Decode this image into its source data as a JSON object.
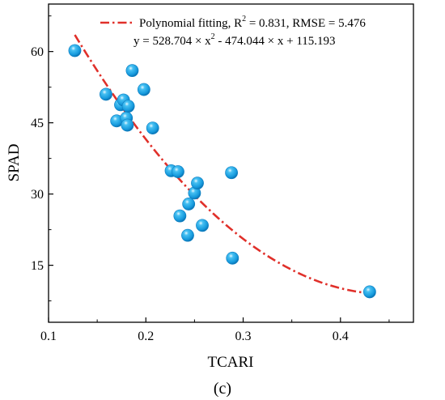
{
  "chart_data": {
    "type": "scatter",
    "xlabel": "TCARI",
    "ylabel": "SPAD",
    "panel_label": "(c)",
    "xlim": [
      0.1,
      0.475
    ],
    "ylim": [
      3,
      70
    ],
    "x_ticks": [
      0.1,
      0.2,
      0.3,
      0.4
    ],
    "x_tick_labels": [
      "0.1",
      "0.2",
      "0.3",
      "0.4"
    ],
    "y_ticks": [
      15,
      30,
      45,
      60
    ],
    "y_tick_labels": [
      "15",
      "30",
      "45",
      "60"
    ],
    "grid": false,
    "legend_position": "top",
    "legend": {
      "fit_label": "Polynomial fitting, R",
      "r2_exponent": "2",
      "fit_stats": " = 0.831, RMSE = 5.476",
      "equation_start": "y = 528.704 × x",
      "equation_exponent": "2",
      "equation_end": " - 474.044 × x + 115.193"
    },
    "fit": {
      "a": 528.704,
      "b": -474.044,
      "c": 115.193,
      "x_range": [
        0.127,
        0.43
      ]
    },
    "colors": {
      "points": "#1ba3e8",
      "fit_line": "#e0302a"
    },
    "points": [
      {
        "x": 0.127,
        "y": 60.2
      },
      {
        "x": 0.159,
        "y": 51.0
      },
      {
        "x": 0.17,
        "y": 45.4
      },
      {
        "x": 0.174,
        "y": 48.8
      },
      {
        "x": 0.177,
        "y": 49.8
      },
      {
        "x": 0.18,
        "y": 46.0
      },
      {
        "x": 0.182,
        "y": 48.5
      },
      {
        "x": 0.181,
        "y": 44.5
      },
      {
        "x": 0.186,
        "y": 56.0
      },
      {
        "x": 0.198,
        "y": 52.0
      },
      {
        "x": 0.207,
        "y": 43.9
      },
      {
        "x": 0.226,
        "y": 34.9
      },
      {
        "x": 0.233,
        "y": 34.7
      },
      {
        "x": 0.235,
        "y": 25.4
      },
      {
        "x": 0.243,
        "y": 21.3
      },
      {
        "x": 0.244,
        "y": 27.9
      },
      {
        "x": 0.25,
        "y": 30.2
      },
      {
        "x": 0.253,
        "y": 32.3
      },
      {
        "x": 0.258,
        "y": 23.4
      },
      {
        "x": 0.288,
        "y": 34.5
      },
      {
        "x": 0.289,
        "y": 16.5
      },
      {
        "x": 0.43,
        "y": 9.4
      }
    ]
  }
}
